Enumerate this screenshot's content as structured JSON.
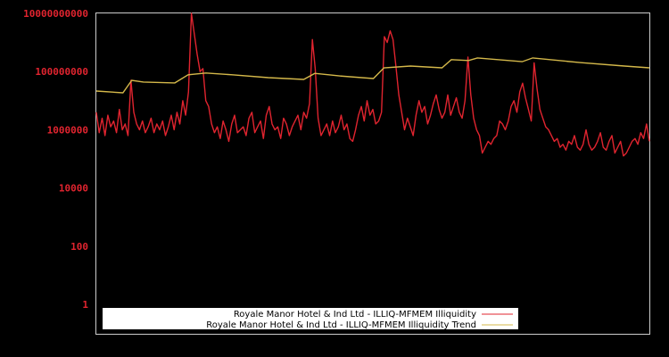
{
  "chart_data": {
    "type": "line",
    "title": "",
    "xlabel": "",
    "ylabel": "",
    "yscale": "log",
    "ylim": [
      1,
      10000000000
    ],
    "y_ticks": [
      "10000000000",
      "100000000",
      "1000000",
      "10000",
      "100",
      "1"
    ],
    "grid": false,
    "legend_position": "bottom-left inside",
    "colors": {
      "background": "#000000",
      "frame": "#cccccc",
      "tick_label": "#e0242f",
      "illiquidity": "#e0242f",
      "trend": "#d4b84a",
      "legend_bg": "#ffffff"
    },
    "series": [
      {
        "name": "Royale Manor Hotel & Ind Ltd - ILLIQ-MFMEM Illiquidity",
        "note": "log10 values sampled at evenly spaced x positions across the full time axis",
        "log10_values": [
          6.6,
          5.9,
          6.4,
          5.8,
          6.5,
          6.1,
          6.3,
          5.9,
          6.7,
          6.0,
          6.2,
          5.8,
          7.7,
          6.6,
          6.2,
          6.0,
          6.3,
          5.9,
          6.1,
          6.4,
          5.9,
          6.2,
          6.0,
          6.3,
          5.8,
          6.1,
          6.5,
          6.0,
          6.6,
          6.2,
          7.0,
          6.5,
          7.3,
          10.0,
          9.3,
          8.6,
          8.0,
          8.1,
          7.0,
          6.8,
          6.2,
          5.9,
          6.1,
          5.7,
          6.3,
          6.0,
          5.6,
          6.2,
          6.5,
          5.9,
          6.0,
          6.1,
          5.8,
          6.4,
          6.6,
          5.9,
          6.1,
          6.3,
          5.7,
          6.5,
          6.8,
          6.2,
          6.0,
          6.1,
          5.7,
          6.4,
          6.2,
          5.8,
          6.1,
          6.3,
          6.5,
          6.0,
          6.6,
          6.4,
          6.9,
          9.1,
          8.1,
          6.4,
          5.8,
          6.0,
          6.2,
          5.8,
          6.3,
          5.9,
          6.1,
          6.5,
          6.0,
          6.2,
          5.7,
          5.6,
          6.0,
          6.5,
          6.8,
          6.3,
          7.0,
          6.5,
          6.7,
          6.2,
          6.3,
          6.6,
          9.2,
          9.0,
          9.4,
          9.1,
          8.2,
          7.2,
          6.6,
          6.0,
          6.4,
          6.1,
          5.8,
          6.5,
          7.0,
          6.6,
          6.8,
          6.2,
          6.5,
          6.9,
          7.2,
          6.7,
          6.4,
          6.6,
          7.2,
          6.5,
          6.8,
          7.1,
          6.6,
          6.4,
          7.0,
          8.5,
          7.2,
          6.4,
          6.0,
          5.8,
          5.2,
          5.4,
          5.6,
          5.5,
          5.7,
          5.8,
          6.3,
          6.2,
          6.0,
          6.3,
          6.8,
          7.0,
          6.6,
          7.3,
          7.6,
          7.1,
          6.7,
          6.3,
          8.3,
          7.4,
          6.7,
          6.4,
          6.1,
          6.0,
          5.8,
          5.6,
          5.7,
          5.4,
          5.5,
          5.3,
          5.6,
          5.5,
          5.8,
          5.4,
          5.3,
          5.5,
          6.0,
          5.5,
          5.3,
          5.4,
          5.6,
          5.9,
          5.4,
          5.3,
          5.6,
          5.8,
          5.2,
          5.4,
          5.6,
          5.1,
          5.2,
          5.4,
          5.6,
          5.7,
          5.5,
          5.9,
          5.7,
          6.2,
          5.6
        ]
      },
      {
        "name": "Royale Manor Hotel & Ind Ltd - ILLIQ-MFMEM Illiquidity Trend",
        "note": "piecewise trend in log10 units at fractional x positions (0..1)",
        "points": [
          [
            0.0,
            7.33
          ],
          [
            0.048,
            7.27
          ],
          [
            0.064,
            7.7
          ],
          [
            0.085,
            7.64
          ],
          [
            0.142,
            7.61
          ],
          [
            0.166,
            7.89
          ],
          [
            0.198,
            7.95
          ],
          [
            0.246,
            7.89
          ],
          [
            0.311,
            7.79
          ],
          [
            0.375,
            7.73
          ],
          [
            0.395,
            7.94
          ],
          [
            0.44,
            7.85
          ],
          [
            0.501,
            7.76
          ],
          [
            0.52,
            8.13
          ],
          [
            0.568,
            8.19
          ],
          [
            0.625,
            8.13
          ],
          [
            0.642,
            8.41
          ],
          [
            0.673,
            8.38
          ],
          [
            0.689,
            8.47
          ],
          [
            0.77,
            8.34
          ],
          [
            0.789,
            8.47
          ],
          [
            0.874,
            8.31
          ],
          [
            0.955,
            8.19
          ],
          [
            1.0,
            8.13
          ]
        ]
      }
    ],
    "legend": [
      {
        "label": "Royale Manor Hotel & Ind Ltd - ILLIQ-MFMEM Illiquidity",
        "color": "#e0242f"
      },
      {
        "label": "Royale Manor Hotel & Ind Ltd - ILLIQ-MFMEM Illiquidity Trend",
        "color": "#d4b84a"
      }
    ]
  }
}
